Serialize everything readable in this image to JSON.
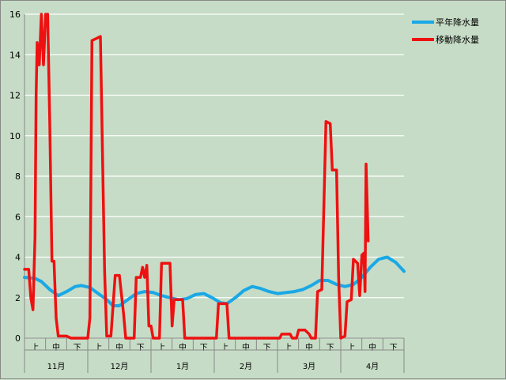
{
  "chart_data": {
    "type": "line",
    "ylim": [
      0,
      16
    ],
    "yticks": [
      "0",
      "2",
      "4",
      "6",
      "8",
      "10",
      "12",
      "14",
      "16"
    ],
    "grid": true,
    "legend": "top-right",
    "decade_labels": [
      "上",
      "中",
      "下",
      "上",
      "中",
      "下",
      "上",
      "中",
      "下",
      "上",
      "中",
      "下",
      "上",
      "中",
      "下",
      "上",
      "中",
      "下"
    ],
    "months": [
      "11月",
      "12月",
      "1月",
      "2月",
      "3月",
      "4月"
    ],
    "series": [
      {
        "name": "平年降水量",
        "color": "#1aa8e6",
        "points": [
          [
            0,
            3.0
          ],
          [
            5,
            2.95
          ],
          [
            8,
            2.8
          ],
          [
            12,
            2.4
          ],
          [
            16,
            2.1
          ],
          [
            20,
            2.3
          ],
          [
            24,
            2.55
          ],
          [
            27,
            2.6
          ],
          [
            31,
            2.5
          ],
          [
            35,
            2.2
          ],
          [
            39,
            1.9
          ],
          [
            42,
            1.6
          ],
          [
            45,
            1.6
          ],
          [
            49,
            1.9
          ],
          [
            53,
            2.2
          ],
          [
            57,
            2.3
          ],
          [
            61,
            2.25
          ],
          [
            65,
            2.1
          ],
          [
            69,
            2.0
          ],
          [
            73,
            1.9
          ],
          [
            77,
            1.95
          ],
          [
            81,
            2.15
          ],
          [
            85,
            2.2
          ],
          [
            89,
            2.0
          ],
          [
            93,
            1.75
          ],
          [
            96,
            1.7
          ],
          [
            100,
            2.0
          ],
          [
            104,
            2.35
          ],
          [
            108,
            2.55
          ],
          [
            112,
            2.45
          ],
          [
            116,
            2.3
          ],
          [
            120,
            2.2
          ],
          [
            124,
            2.25
          ],
          [
            128,
            2.3
          ],
          [
            132,
            2.4
          ],
          [
            136,
            2.6
          ],
          [
            140,
            2.85
          ],
          [
            144,
            2.85
          ],
          [
            148,
            2.65
          ],
          [
            152,
            2.55
          ],
          [
            156,
            2.65
          ],
          [
            160,
            3.0
          ],
          [
            164,
            3.5
          ],
          [
            168,
            3.9
          ],
          [
            172,
            4.0
          ],
          [
            176,
            3.75
          ],
          [
            180,
            3.3
          ]
        ]
      },
      {
        "name": "移動降水量",
        "color": "#ee1111",
        "points": [
          [
            0,
            3.4
          ],
          [
            2,
            3.4
          ],
          [
            3,
            2.0
          ],
          [
            4,
            1.4
          ],
          [
            5,
            5.0
          ],
          [
            5.5,
            12.0
          ],
          [
            6,
            14.6
          ],
          [
            7,
            13.5
          ],
          [
            8,
            16.0
          ],
          [
            9,
            13.5
          ],
          [
            10,
            16.0
          ],
          [
            11,
            16.0
          ],
          [
            12,
            10.5
          ],
          [
            13,
            3.8
          ],
          [
            14,
            3.8
          ],
          [
            15,
            1.0
          ],
          [
            16,
            0.1
          ],
          [
            20,
            0.1
          ],
          [
            22,
            0.0
          ],
          [
            30,
            0.0
          ],
          [
            31,
            1.0
          ],
          [
            32,
            14.7
          ],
          [
            34,
            14.8
          ],
          [
            36,
            14.9
          ],
          [
            38,
            3.3
          ],
          [
            39,
            0.1
          ],
          [
            41,
            0.1
          ],
          [
            42,
            1.6
          ],
          [
            43,
            3.1
          ],
          [
            45,
            3.1
          ],
          [
            47,
            1.2
          ],
          [
            48,
            0.0
          ],
          [
            52,
            0.0
          ],
          [
            53,
            3.0
          ],
          [
            55,
            3.0
          ],
          [
            56,
            3.5
          ],
          [
            57,
            3.0
          ],
          [
            58,
            3.6
          ],
          [
            59,
            0.6
          ],
          [
            60,
            0.6
          ],
          [
            61,
            0.0
          ],
          [
            64,
            0.0
          ],
          [
            65,
            3.7
          ],
          [
            69,
            3.7
          ],
          [
            70,
            0.6
          ],
          [
            71,
            1.9
          ],
          [
            75,
            1.9
          ],
          [
            76,
            0.0
          ],
          [
            91,
            0.0
          ],
          [
            92,
            1.7
          ],
          [
            96,
            1.7
          ],
          [
            97,
            0.0
          ],
          [
            121,
            0.0
          ],
          [
            122,
            0.2
          ],
          [
            126,
            0.2
          ],
          [
            127,
            0.0
          ],
          [
            129,
            0.0
          ],
          [
            130,
            0.4
          ],
          [
            133,
            0.4
          ],
          [
            134,
            0.3
          ],
          [
            135,
            0.2
          ],
          [
            136,
            0.0
          ],
          [
            138,
            0.0
          ],
          [
            139,
            2.3
          ],
          [
            141,
            2.4
          ],
          [
            143,
            10.7
          ],
          [
            145,
            10.6
          ],
          [
            146,
            8.3
          ],
          [
            148,
            8.3
          ],
          [
            149,
            3.0
          ],
          [
            150,
            0.0
          ],
          [
            152,
            0.1
          ],
          [
            153,
            1.8
          ],
          [
            155,
            1.9
          ],
          [
            156,
            3.9
          ],
          [
            158,
            3.7
          ],
          [
            159,
            2.1
          ],
          [
            160,
            4.1
          ],
          [
            161,
            4.2
          ],
          [
            161.5,
            2.3
          ],
          [
            162,
            8.6
          ],
          [
            163,
            4.8
          ]
        ]
      }
    ]
  }
}
